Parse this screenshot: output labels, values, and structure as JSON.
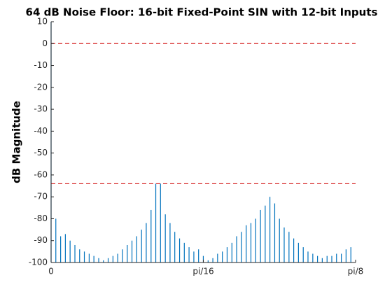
{
  "chart_data": {
    "type": "bar",
    "title": "64 dB Noise Floor: 16-bit Fixed-Point SIN with 12-bit Inputs",
    "y_label": "dB Magnitude",
    "x": [
      0,
      0.0061,
      0.0123,
      0.0184,
      0.0245,
      0.0307,
      0.0368,
      0.0429,
      0.0491,
      0.0552,
      0.0614,
      0.0675,
      0.0736,
      0.0798,
      0.0859,
      0.092,
      0.0982,
      0.1043,
      0.1104,
      0.1166,
      0.1227,
      0.1289,
      0.135,
      0.1411,
      0.1473,
      0.1534,
      0.1595,
      0.1657,
      0.1718,
      0.1779,
      0.1841,
      0.1902,
      0.1963,
      0.2025,
      0.2086,
      0.2147,
      0.2209,
      0.227,
      0.2332,
      0.2393,
      0.2454,
      0.2516,
      0.2577,
      0.2638,
      0.27,
      0.2761,
      0.2822,
      0.2884,
      0.2945,
      0.3006,
      0.3068,
      0.3129,
      0.319,
      0.3252,
      0.3313,
      0.3375,
      0.3436,
      0.3497,
      0.3559,
      0.362,
      0.3681,
      0.3743,
      0.3804,
      0.3866
    ],
    "values": [
      10,
      -80,
      -88,
      -87,
      -90,
      -92,
      -94,
      -95,
      -96,
      -97,
      -98,
      -99,
      -98,
      -97,
      -96,
      -94,
      -92,
      -90,
      -88,
      -85,
      -82,
      -76,
      -64,
      -64,
      -78,
      -82,
      -86,
      -89,
      -91,
      -93,
      -95,
      -94,
      -97,
      -99,
      -98,
      -96,
      -95,
      -93,
      -91,
      -88,
      -86,
      -83,
      -82,
      -80,
      -76,
      -74,
      -70,
      -73,
      -80,
      -84,
      -86,
      -89,
      -91,
      -93,
      -95,
      -96,
      -97,
      -98,
      -97,
      -97,
      -96,
      -96,
      -94,
      -93
    ],
    "color": "#0072bd",
    "reference_lines": [
      {
        "value": 0,
        "color": "#d62728"
      },
      {
        "value": -64,
        "color": "#d62728"
      }
    ],
    "xlim": [
      0,
      0.3927
    ],
    "xticks": [
      {
        "value": 0,
        "label": "0"
      },
      {
        "value": 0.19635,
        "label": "pi/16"
      },
      {
        "value": 0.3927,
        "label": "pi/8"
      }
    ],
    "ylim": [
      -100,
      10
    ],
    "yticks": [
      10,
      0,
      -10,
      -20,
      -30,
      -40,
      -50,
      -60,
      -70,
      -80,
      -90,
      -100
    ]
  }
}
